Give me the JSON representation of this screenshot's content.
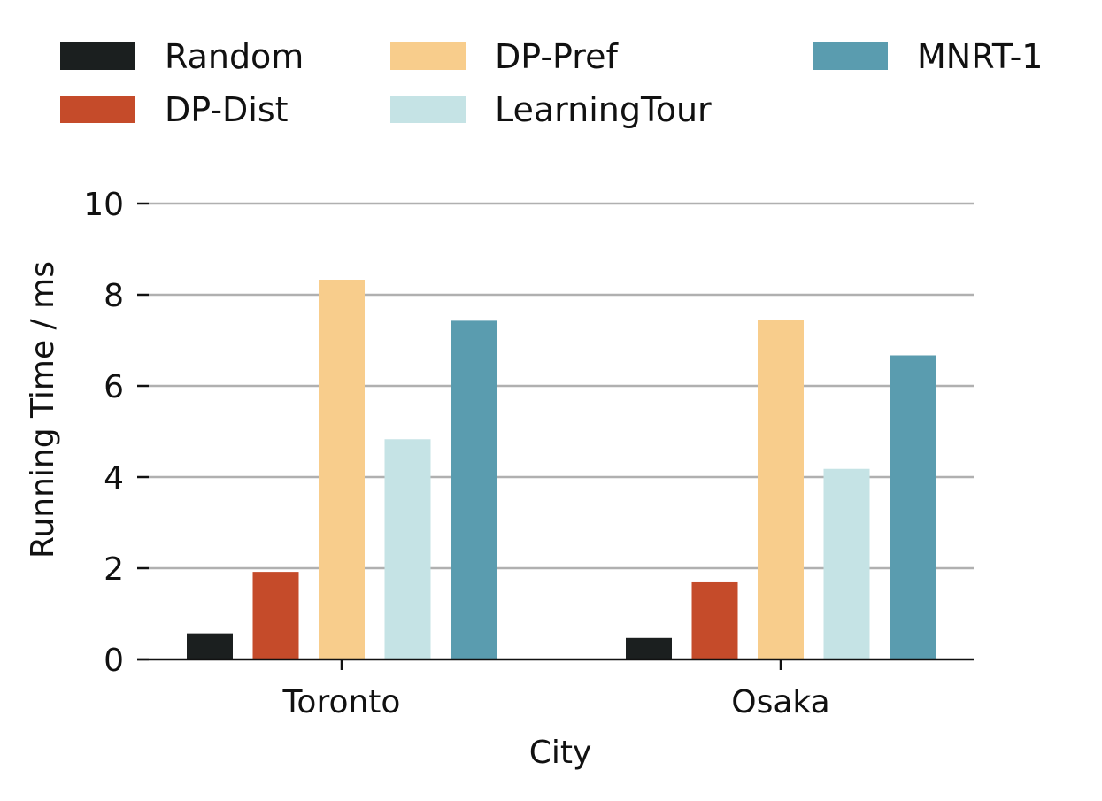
{
  "chart_data": {
    "type": "bar",
    "title": "",
    "xlabel": "City",
    "ylabel": "Running Time / ms",
    "categories": [
      "Toronto",
      "Osaka"
    ],
    "series": [
      {
        "name": "Random",
        "color": "#1b1f1f",
        "values": [
          0.57,
          0.47
        ]
      },
      {
        "name": "DP-Dist",
        "color": "#c54b2a",
        "values": [
          1.92,
          1.69
        ]
      },
      {
        "name": "DP-Pref",
        "color": "#f8cd8c",
        "values": [
          8.33,
          7.44
        ]
      },
      {
        "name": "LearningTour",
        "color": "#c5e3e5",
        "values": [
          4.83,
          4.18
        ]
      },
      {
        "name": "MNRT-1",
        "color": "#5a9caf",
        "values": [
          7.43,
          6.67
        ]
      }
    ],
    "ylim": [
      0,
      10
    ],
    "yticks": [
      0,
      2,
      4,
      6,
      8,
      10
    ],
    "grid": true,
    "legend_position": "top"
  }
}
